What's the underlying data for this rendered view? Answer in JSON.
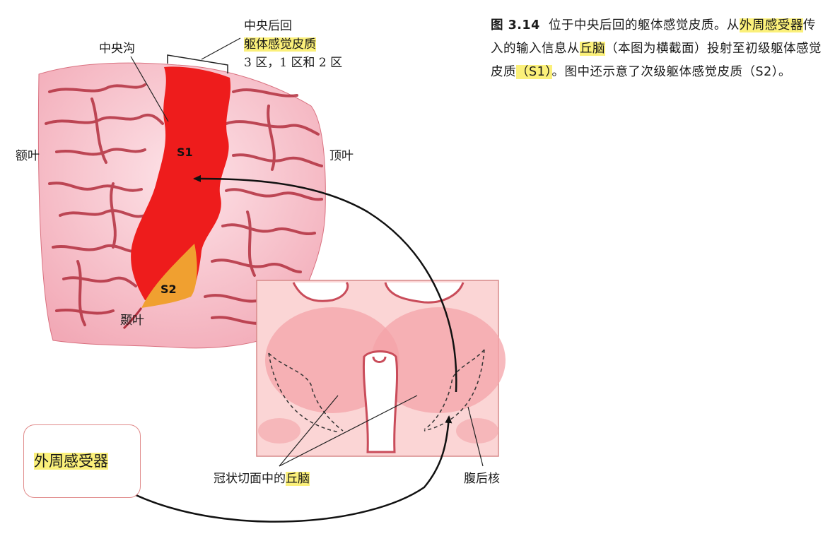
{
  "caption": {
    "fig_label": "图 3.14",
    "part1": "位于中央后回的躯体感觉皮质。从",
    "highlight1": "外周感受器",
    "part2": "传入的输入信息从",
    "highlight2": "丘脑",
    "part3": "（本图为横截面）投射至初级躯体感觉皮质",
    "highlight3": "（S1）",
    "part4": "。图中还示意了次级躯体感觉皮质（S2）。"
  },
  "labels": {
    "central_sulcus": "中央沟",
    "postcentral_gyrus": "中央后回",
    "somatosensory_cortex": "躯体感觉皮质",
    "areas": "3 区，1 区和 2 区",
    "frontal_lobe": "额叶",
    "parietal_lobe": "顶叶",
    "temporal_lobe": "颞叶",
    "s1": "S1",
    "s2": "S2",
    "thalamus_prefix": "冠状切面中的",
    "thalamus": "丘脑",
    "vpn": "腹后核",
    "peripheral_receptor": "外周感受器"
  },
  "colors": {
    "s1_region": "#ee1c1c",
    "s2_region": "#f0a030",
    "brain_fill": "#f6b9c3",
    "sulcus": "#b3303f",
    "highlight": "#fbf07a",
    "thalamus_panel": "#fbd5d5"
  }
}
